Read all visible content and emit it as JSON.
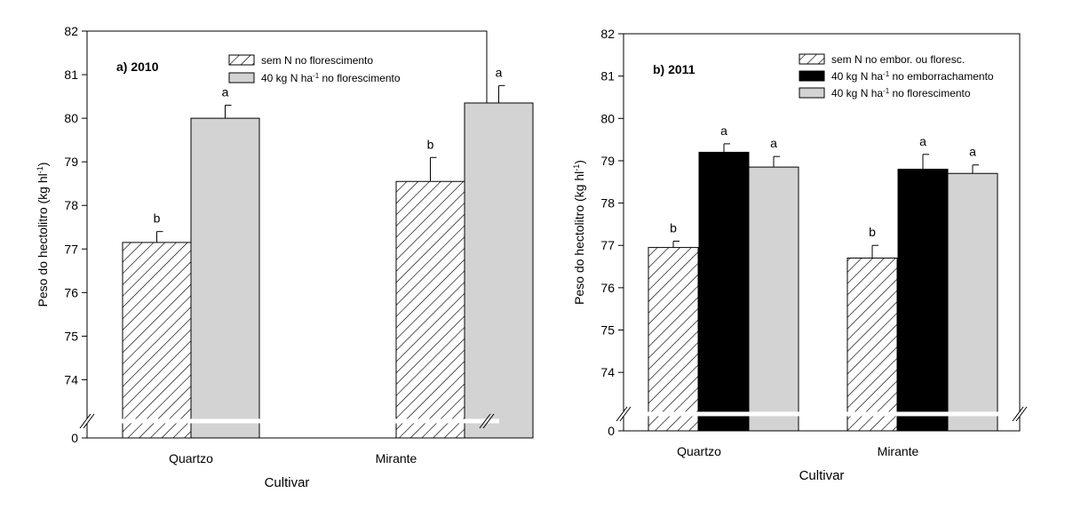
{
  "figure": {
    "x_axis_label": "Cultivar",
    "y_axis_label_main": "Peso do hectolitro (kg hl",
    "y_axis_label_sup": "-1",
    "y_axis_label_end": ")"
  },
  "chart_data": [
    {
      "type": "bar",
      "title": "a) 2010",
      "xlabel": "Cultivar",
      "ylabel": "Peso do hectolitro (kg hl-1)",
      "ylim": [
        73.5,
        82
      ],
      "axis_break": true,
      "y_break_label": "0",
      "y_ticks": [
        74,
        75,
        76,
        77,
        78,
        79,
        80,
        81,
        82
      ],
      "categories": [
        "Quartzo",
        "Mirante"
      ],
      "legend_position": "top-right",
      "series": [
        {
          "name": "sem N no florescimento",
          "legend_parts": [
            "sem N no florescimento"
          ],
          "fill": "hatch",
          "values": [
            77.15,
            78.55
          ],
          "errors": [
            0.25,
            0.55
          ],
          "letters": [
            "b",
            "b"
          ]
        },
        {
          "name": "40 kg N ha-1 no florescimento",
          "legend_parts": [
            "40 kg N ha",
            "-1",
            " no florescimento"
          ],
          "fill": "#d3d3d3",
          "values": [
            80.0,
            80.35
          ],
          "errors": [
            0.3,
            0.4
          ],
          "letters": [
            "a",
            "a"
          ]
        }
      ]
    },
    {
      "type": "bar",
      "title": "b) 2011",
      "xlabel": "Cultivar",
      "ylabel": "Peso do hectolitro (kg hl-1)",
      "ylim": [
        73.5,
        82
      ],
      "axis_break": true,
      "y_break_label": "0",
      "y_ticks": [
        74,
        75,
        76,
        77,
        78,
        79,
        80,
        81,
        82
      ],
      "categories": [
        "Quartzo",
        "Mirante"
      ],
      "legend_position": "top-right",
      "series": [
        {
          "name": "sem N no embor. ou floresc.",
          "legend_parts": [
            "sem N no embor. ou floresc."
          ],
          "fill": "hatch",
          "values": [
            76.95,
            76.7
          ],
          "errors": [
            0.15,
            0.3
          ],
          "letters": [
            "b",
            "b"
          ]
        },
        {
          "name": "40 kg N ha-1 no emborrachamento",
          "legend_parts": [
            "40 kg N ha",
            "-1",
            " no emborrachamento"
          ],
          "fill": "#000000",
          "values": [
            79.2,
            78.8
          ],
          "errors": [
            0.2,
            0.35
          ],
          "letters": [
            "a",
            "a"
          ]
        },
        {
          "name": "40 kg N ha-1 no florescimento",
          "legend_parts": [
            "40 kg N ha",
            "-1",
            " no florescimento"
          ],
          "fill": "#d3d3d3",
          "values": [
            78.85,
            78.7
          ],
          "errors": [
            0.25,
            0.2
          ],
          "letters": [
            "a",
            "a"
          ]
        }
      ]
    }
  ]
}
